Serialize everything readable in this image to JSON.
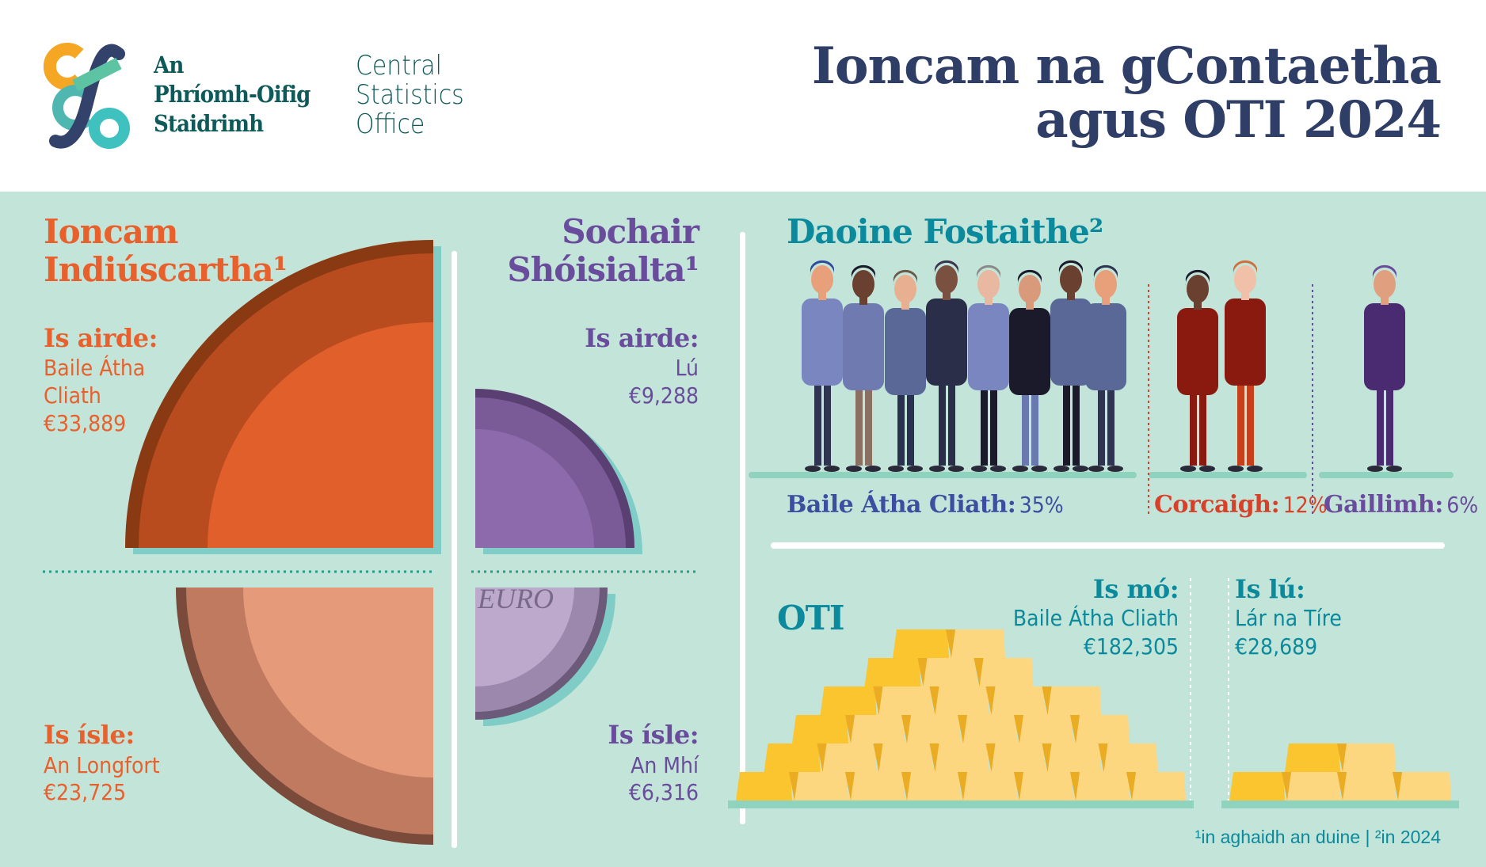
{
  "header": {
    "logo_irish": [
      "An",
      "Phríomh-Oifig",
      "Staidrimh"
    ],
    "logo_english": [
      "Central",
      "Statistics",
      "Office"
    ],
    "title_line1": "Ioncam na gContaetha",
    "title_line2": "agus OTI 2024"
  },
  "disposable_income": {
    "title_line1": "Ioncam",
    "title_line2": "Indiúscartha¹",
    "highest_label": "Is airde:",
    "highest_place_line1": "Baile Átha",
    "highest_place_line2": "Cliath",
    "highest_value": "€33,889",
    "lowest_label": "Is ísle:",
    "lowest_place": "An Longfort",
    "lowest_value": "€23,725",
    "color": "#e8602c"
  },
  "social_benefits": {
    "title_line1": "Sochair",
    "title_line2": "Shóisialta¹",
    "highest_label": "Is airde:",
    "highest_place": "Lú",
    "highest_value": "€9,288",
    "lowest_label": "Is ísle:",
    "lowest_place": "An Mhí",
    "lowest_value": "€6,316",
    "coin_text": "EURO",
    "color": "#6a4c9c"
  },
  "employed": {
    "title": "Daoine Fostaithe²",
    "regions": [
      {
        "name": "Baile Átha Cliath:",
        "value": "35%",
        "color": "#3b4fa0",
        "people": 8
      },
      {
        "name": "Corcaigh:",
        "value": "12%",
        "color": "#d8402a",
        "people": 2
      },
      {
        "name": "Gaillimh:",
        "value": "6%",
        "color": "#6a4c9c",
        "people": 1
      }
    ]
  },
  "gva": {
    "title": "OTI",
    "most_label": "Is mó:",
    "most_place": "Baile Átha Cliath",
    "most_value": "€182,305",
    "least_label": "Is lú:",
    "least_place": "Lár na Tíre",
    "least_value": "€28,689"
  },
  "footnote": "¹in aghaidh an duine  |  ²in 2024"
}
